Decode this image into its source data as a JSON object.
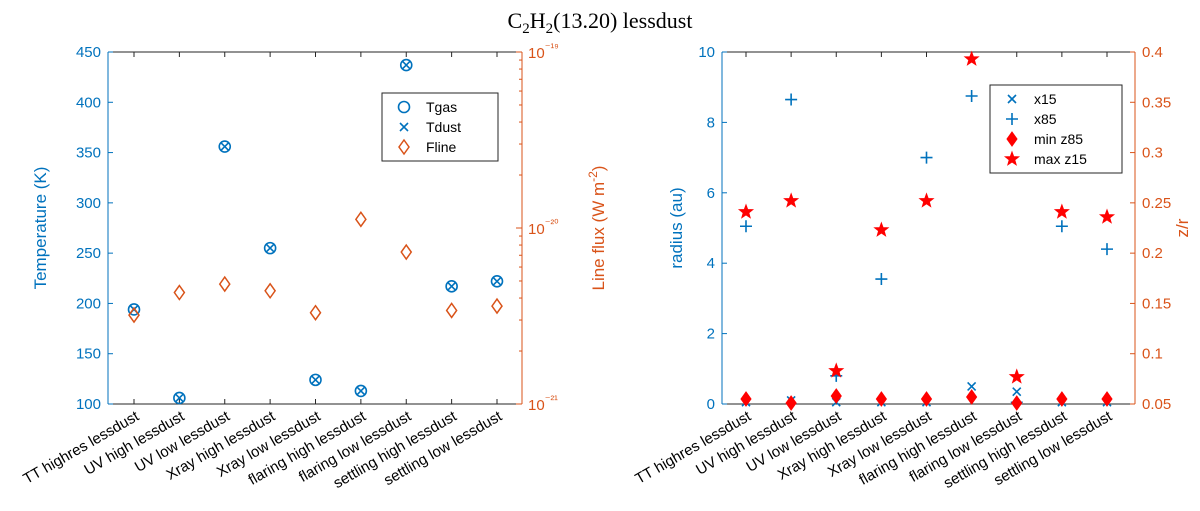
{
  "figure_title": "C₂H₂(13.20) lessdust",
  "colors": {
    "blue": "#0072BD",
    "orange": "#D95319",
    "red": "#FF0000",
    "axis": "#262626"
  },
  "chart_data": [
    {
      "type": "scatter",
      "categories": [
        "TT highres lessdust",
        "UV high lessdust",
        "UV low lessdust",
        "Xray high lessdust",
        "Xray low lessdust",
        "flaring high lessdust",
        "flaring low lessdust",
        "settling high lessdust",
        "settling low lessdust"
      ],
      "ylabel_left": "Temperature (K)",
      "ylim_left": [
        100,
        450
      ],
      "yticks_left": [
        "100",
        "150",
        "200",
        "250",
        "300",
        "350",
        "400",
        "450"
      ],
      "ylabel_right": "Line flux (W m⁻²)",
      "ylim_right": [
        1e-21,
        1e-19
      ],
      "yscale_right": "log",
      "yticks_right": [
        "10⁻²¹",
        "10⁻²⁰",
        "10⁻¹⁹"
      ],
      "series": [
        {
          "name": "Tgas",
          "axis": "left",
          "marker": "circle",
          "values": [
            194,
            106,
            356,
            255,
            124,
            113,
            437,
            217,
            222
          ]
        },
        {
          "name": "Tdust",
          "axis": "left",
          "marker": "x",
          "values": [
            194,
            106,
            356,
            255,
            124,
            113,
            437,
            217,
            222
          ]
        },
        {
          "name": "Fline",
          "axis": "right",
          "marker": "diamond",
          "values": [
            3.2e-21,
            4.3e-21,
            4.8e-21,
            4.4e-21,
            3.3e-21,
            1.12e-20,
            7.3e-21,
            3.4e-21,
            3.6e-21
          ]
        }
      ],
      "legend": [
        "Tgas",
        "Tdust",
        "Fline"
      ],
      "legend_position": "top-right"
    },
    {
      "type": "scatter",
      "categories": [
        "TT highres lessdust",
        "UV high lessdust",
        "UV low lessdust",
        "Xray high lessdust",
        "Xray low lessdust",
        "flaring high lessdust",
        "flaring low lessdust",
        "settling high lessdust",
        "settling low lessdust"
      ],
      "ylabel_left": "radius (au)",
      "ylim_left": [
        0,
        10
      ],
      "yticks_left": [
        "0",
        "2",
        "4",
        "6",
        "8",
        "10"
      ],
      "ylabel_right": "z/r",
      "ylim_right": [
        0.05,
        0.4
      ],
      "yticks_right": [
        "0.05",
        "0.1",
        "0.15",
        "0.2",
        "0.25",
        "0.3",
        "0.35",
        "0.4"
      ],
      "series": [
        {
          "name": "x15",
          "axis": "left",
          "marker": "x",
          "values": [
            0.05,
            0.1,
            0.05,
            0.05,
            0.05,
            0.5,
            0.35,
            0.05,
            0.05
          ]
        },
        {
          "name": "x85",
          "axis": "left",
          "marker": "plus",
          "values": [
            5.05,
            8.65,
            0.8,
            3.55,
            7.0,
            8.75,
            0.05,
            5.05,
            4.4
          ]
        },
        {
          "name": "min z85",
          "axis": "right",
          "marker": "diamond-filled",
          "values": [
            0.055,
            0.051,
            0.058,
            0.055,
            0.055,
            0.057,
            0.051,
            0.055,
            0.055
          ]
        },
        {
          "name": "max z15",
          "axis": "right",
          "marker": "star",
          "values": [
            0.241,
            0.252,
            0.083,
            0.223,
            0.252,
            0.393,
            0.077,
            0.241,
            0.236
          ]
        }
      ],
      "legend": [
        "x15",
        "x85",
        "min z85",
        "max z15"
      ],
      "legend_position": "top-right"
    }
  ]
}
